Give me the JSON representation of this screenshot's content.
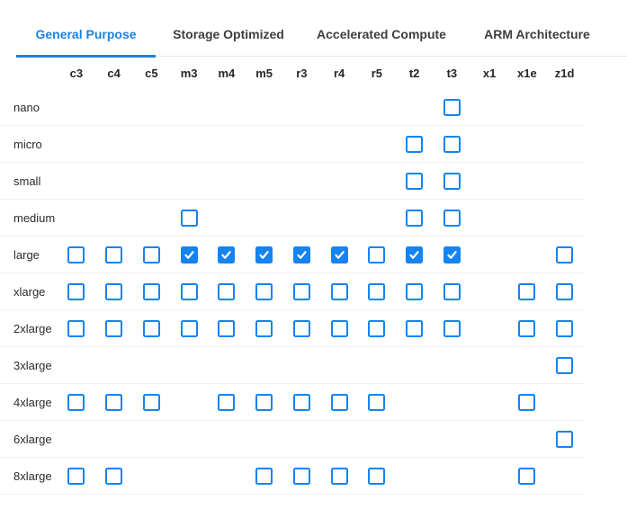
{
  "tabs": [
    {
      "label": "General Purpose",
      "active": true
    },
    {
      "label": "Storage Optimized",
      "active": false
    },
    {
      "label": "Accelerated Compute",
      "active": false
    },
    {
      "label": "ARM Architecture",
      "active": false
    }
  ],
  "matrix": {
    "columns": [
      "c3",
      "c4",
      "c5",
      "m3",
      "m4",
      "m5",
      "r3",
      "r4",
      "r5",
      "t2",
      "t3",
      "x1",
      "x1e",
      "z1d"
    ],
    "rows": [
      {
        "label": "nano",
        "cells": [
          null,
          null,
          null,
          null,
          null,
          null,
          null,
          null,
          null,
          null,
          "unchecked",
          null,
          null,
          null
        ]
      },
      {
        "label": "micro",
        "cells": [
          null,
          null,
          null,
          null,
          null,
          null,
          null,
          null,
          null,
          "unchecked",
          "unchecked",
          null,
          null,
          null
        ]
      },
      {
        "label": "small",
        "cells": [
          null,
          null,
          null,
          null,
          null,
          null,
          null,
          null,
          null,
          "unchecked",
          "unchecked",
          null,
          null,
          null
        ]
      },
      {
        "label": "medium",
        "cells": [
          null,
          null,
          null,
          "unchecked",
          null,
          null,
          null,
          null,
          null,
          "unchecked",
          "unchecked",
          null,
          null,
          null
        ]
      },
      {
        "label": "large",
        "cells": [
          "unchecked",
          "unchecked",
          "unchecked",
          "checked",
          "checked",
          "checked",
          "checked",
          "checked",
          "unchecked",
          "checked",
          "checked",
          null,
          null,
          "unchecked"
        ]
      },
      {
        "label": "xlarge",
        "cells": [
          "unchecked",
          "unchecked",
          "unchecked",
          "unchecked",
          "unchecked",
          "unchecked",
          "unchecked",
          "unchecked",
          "unchecked",
          "unchecked",
          "unchecked",
          null,
          "unchecked",
          "unchecked"
        ]
      },
      {
        "label": "2xlarge",
        "cells": [
          "unchecked",
          "unchecked",
          "unchecked",
          "unchecked",
          "unchecked",
          "unchecked",
          "unchecked",
          "unchecked",
          "unchecked",
          "unchecked",
          "unchecked",
          null,
          "unchecked",
          "unchecked"
        ]
      },
      {
        "label": "3xlarge",
        "cells": [
          null,
          null,
          null,
          null,
          null,
          null,
          null,
          null,
          null,
          null,
          null,
          null,
          null,
          "unchecked"
        ]
      },
      {
        "label": "4xlarge",
        "cells": [
          "unchecked",
          "unchecked",
          "unchecked",
          null,
          "unchecked",
          "unchecked",
          "unchecked",
          "unchecked",
          "unchecked",
          null,
          null,
          null,
          "unchecked",
          null
        ]
      },
      {
        "label": "6xlarge",
        "cells": [
          null,
          null,
          null,
          null,
          null,
          null,
          null,
          null,
          null,
          null,
          null,
          null,
          null,
          "unchecked"
        ]
      },
      {
        "label": "8xlarge",
        "cells": [
          "unchecked",
          "unchecked",
          null,
          null,
          null,
          "unchecked",
          "unchecked",
          "unchecked",
          "unchecked",
          null,
          null,
          null,
          "unchecked",
          null
        ]
      }
    ]
  },
  "icons": {
    "checked_checkbox": "check-icon"
  },
  "colors": {
    "accent": "#1a82e2",
    "checkbox_blue": "#1583f2",
    "tab_inactive": "#3e3e3e",
    "tab_divider": "#e9e9e9",
    "row_divider": "#f0f0f0"
  }
}
